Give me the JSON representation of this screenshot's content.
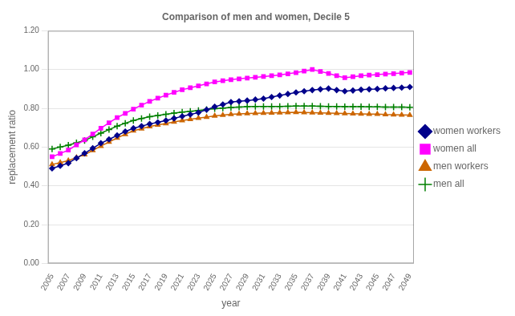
{
  "chart_data": {
    "type": "line",
    "title": "Comparison of men and women, Decile 5",
    "x_label": "year",
    "y_label": "replacement ratio",
    "x": [
      2005,
      2006,
      2007,
      2008,
      2009,
      2010,
      2011,
      2012,
      2013,
      2014,
      2015,
      2016,
      2017,
      2018,
      2019,
      2020,
      2021,
      2022,
      2023,
      2024,
      2025,
      2026,
      2027,
      2028,
      2029,
      2030,
      2031,
      2032,
      2033,
      2034,
      2035,
      2036,
      2037,
      2038,
      2039,
      2040,
      2041,
      2042,
      2043,
      2044,
      2045,
      2046,
      2047,
      2048,
      2049
    ],
    "series": [
      {
        "name": "women workers",
        "color": "#00008b",
        "marker": "diamond",
        "values": [
          0.49,
          0.503,
          0.517,
          0.543,
          0.568,
          0.594,
          0.62,
          0.64,
          0.66,
          0.68,
          0.697,
          0.708,
          0.719,
          0.728,
          0.737,
          0.748,
          0.759,
          0.768,
          0.778,
          0.793,
          0.808,
          0.82,
          0.832,
          0.836,
          0.84,
          0.845,
          0.85,
          0.858,
          0.866,
          0.874,
          0.882,
          0.888,
          0.894,
          0.898,
          0.902,
          0.894,
          0.888,
          0.892,
          0.896,
          0.898,
          0.9,
          0.903,
          0.905,
          0.907,
          0.91
        ]
      },
      {
        "name": "women all",
        "color": "#ff00ff",
        "marker": "square",
        "values": [
          0.55,
          0.567,
          0.584,
          0.611,
          0.637,
          0.667,
          0.697,
          0.725,
          0.752,
          0.774,
          0.796,
          0.816,
          0.836,
          0.852,
          0.868,
          0.882,
          0.896,
          0.906,
          0.916,
          0.926,
          0.936,
          0.942,
          0.948,
          0.952,
          0.956,
          0.96,
          0.964,
          0.968,
          0.972,
          0.978,
          0.984,
          0.992,
          1.0,
          0.99,
          0.98,
          0.968,
          0.958,
          0.963,
          0.968,
          0.971,
          0.974,
          0.977,
          0.979,
          0.982,
          0.985
        ]
      },
      {
        "name": "men workers",
        "color": "#cc6600",
        "marker": "triangle",
        "values": [
          0.51,
          0.52,
          0.53,
          0.546,
          0.561,
          0.583,
          0.605,
          0.626,
          0.647,
          0.666,
          0.684,
          0.695,
          0.706,
          0.714,
          0.722,
          0.73,
          0.737,
          0.743,
          0.749,
          0.755,
          0.761,
          0.765,
          0.769,
          0.771,
          0.773,
          0.774,
          0.775,
          0.776,
          0.777,
          0.778,
          0.779,
          0.778,
          0.777,
          0.776,
          0.775,
          0.774,
          0.773,
          0.772,
          0.771,
          0.77,
          0.77,
          0.768,
          0.767,
          0.766,
          0.765
        ]
      },
      {
        "name": "men all",
        "color": "#008000",
        "marker": "plus",
        "values": [
          0.59,
          0.6,
          0.61,
          0.622,
          0.634,
          0.653,
          0.672,
          0.69,
          0.708,
          0.723,
          0.737,
          0.747,
          0.757,
          0.763,
          0.769,
          0.775,
          0.781,
          0.785,
          0.789,
          0.794,
          0.798,
          0.801,
          0.804,
          0.806,
          0.808,
          0.809,
          0.81,
          0.81,
          0.81,
          0.811,
          0.812,
          0.812,
          0.812,
          0.811,
          0.81,
          0.809,
          0.808,
          0.808,
          0.808,
          0.807,
          0.807,
          0.806,
          0.806,
          0.806,
          0.805
        ]
      }
    ],
    "xlim": [
      2004.5,
      2049.5
    ],
    "xticks": [
      2005,
      2007,
      2009,
      2011,
      2013,
      2015,
      2017,
      2019,
      2021,
      2023,
      2025,
      2027,
      2029,
      2031,
      2033,
      2035,
      2037,
      2039,
      2041,
      2043,
      2045,
      2047,
      2049
    ],
    "ylim": [
      0.0,
      1.2
    ],
    "yticks": [
      {
        "value": 0.0,
        "label": "0.00"
      },
      {
        "value": 0.2,
        "label": "0.20"
      },
      {
        "value": 0.4,
        "label": "0.40"
      },
      {
        "value": 0.6,
        "label": "0.60"
      },
      {
        "value": 0.8,
        "label": "0.80"
      },
      {
        "value": 1.0,
        "label": "1.00"
      },
      {
        "value": 1.2,
        "label": "1.20"
      }
    ],
    "grid": "y",
    "legend": "right"
  }
}
